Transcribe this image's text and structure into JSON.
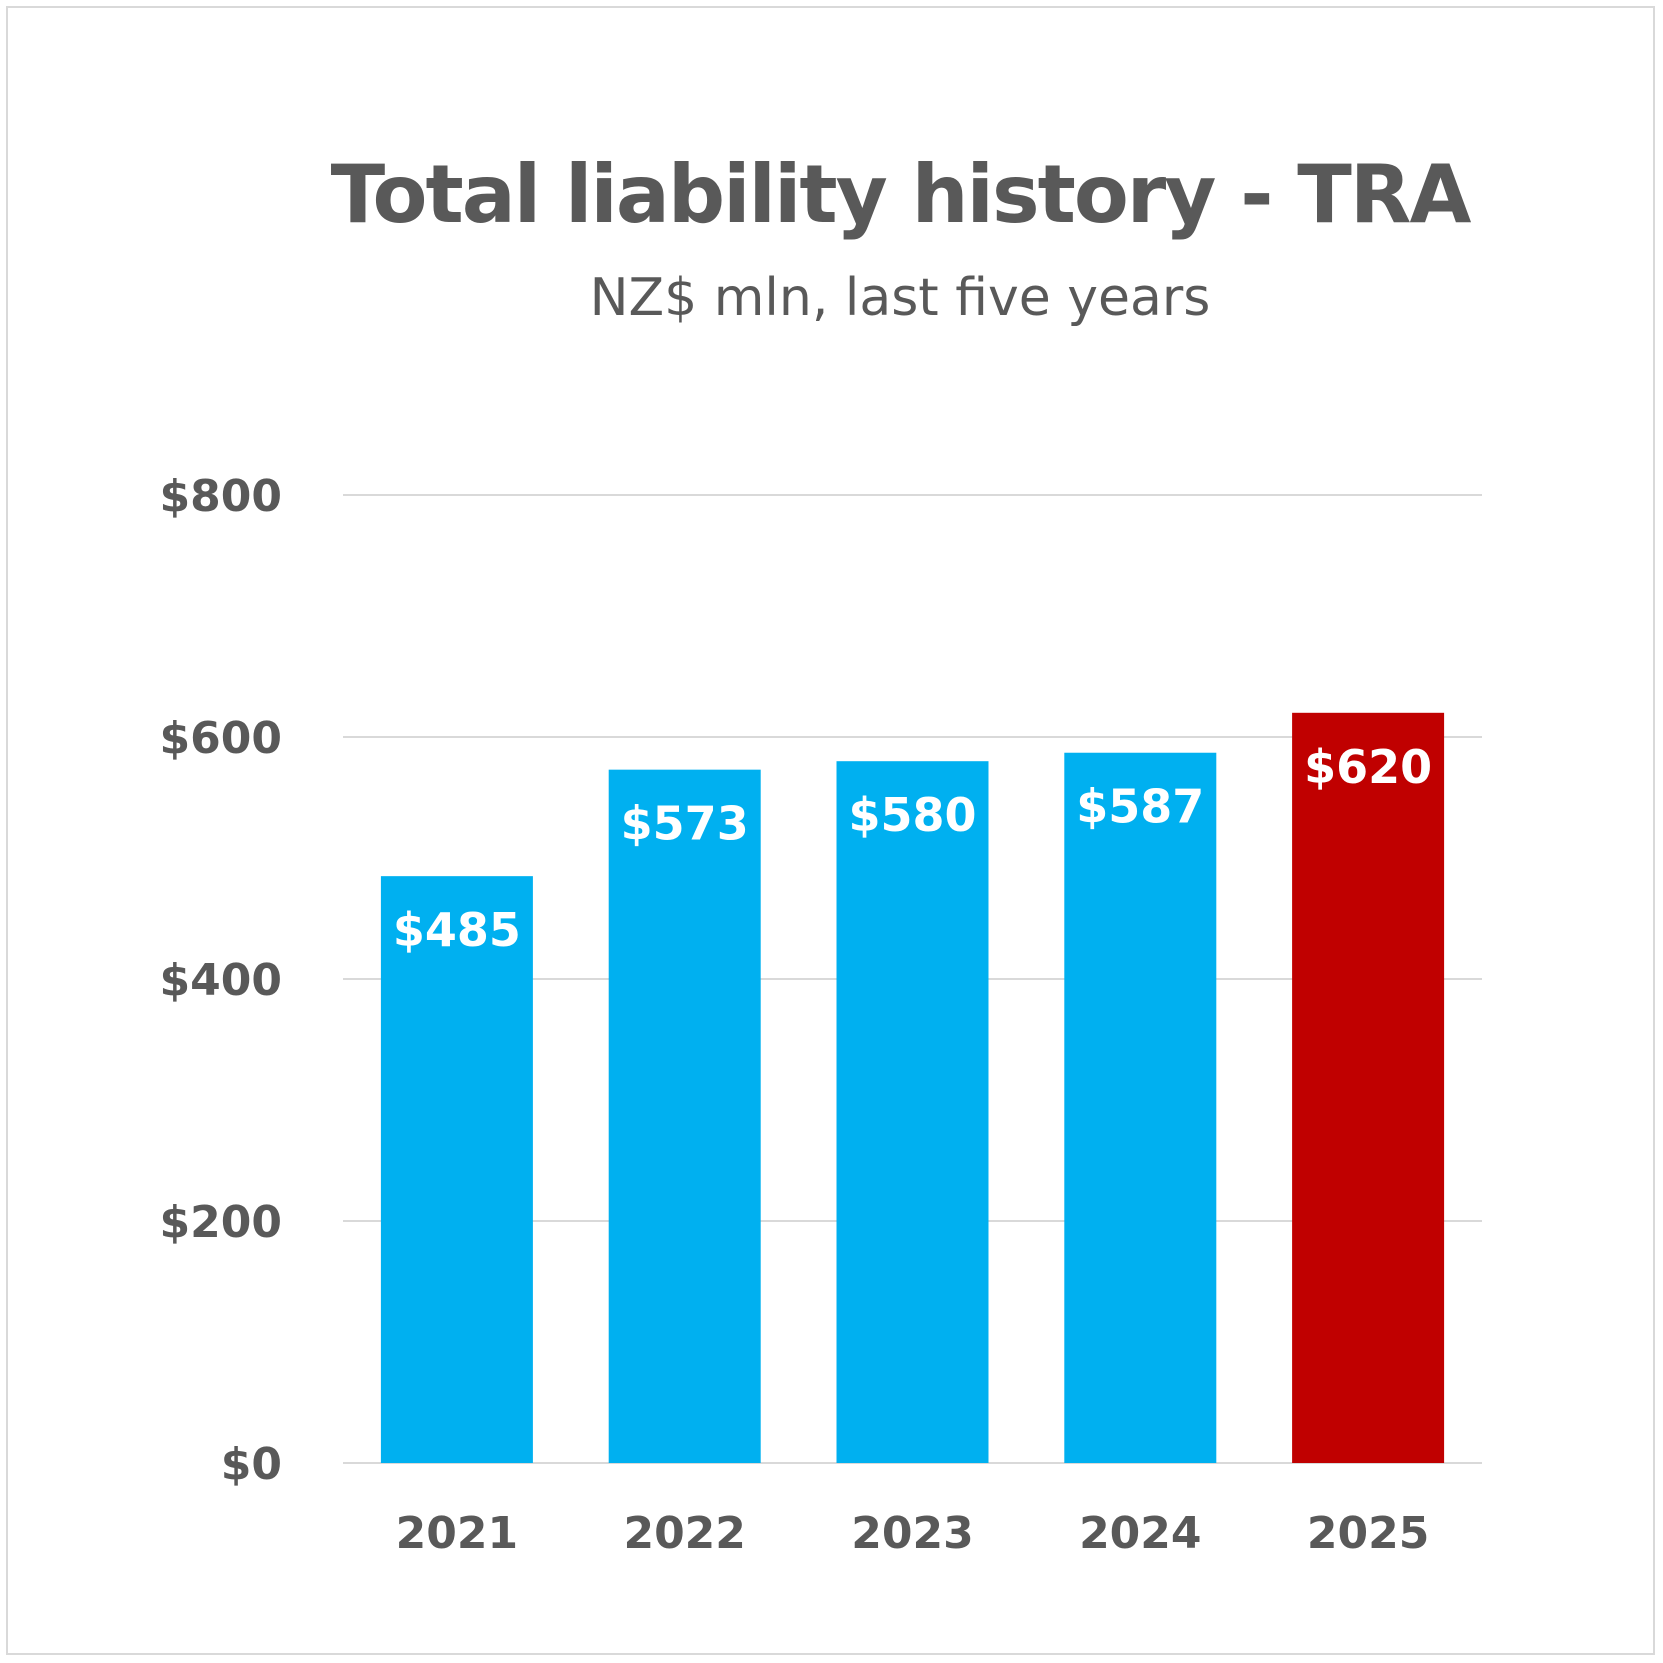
{
  "chart_data": {
    "type": "bar",
    "title": "Total liability history - TRA",
    "subtitle": "NZ$ mln, last five years",
    "categories": [
      "2021",
      "2022",
      "2023",
      "2024",
      "2025"
    ],
    "values": [
      485,
      573,
      580,
      587,
      620
    ],
    "data_labels": [
      "$485",
      "$573",
      "$580",
      "$587",
      "$620"
    ],
    "bar_colors": [
      "#00b0f0",
      "#00b0f0",
      "#00b0f0",
      "#00b0f0",
      "#c00000"
    ],
    "ylim": [
      0,
      800
    ],
    "yticks": [
      0,
      200,
      400,
      600,
      800
    ],
    "ytick_labels": [
      "$0",
      "$200",
      "$400",
      "$600",
      "$800"
    ],
    "grid": true,
    "legend": "none"
  }
}
